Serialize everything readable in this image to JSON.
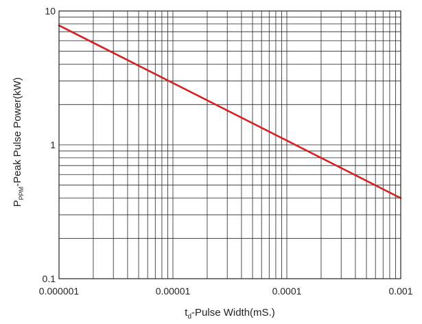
{
  "chart_data": {
    "type": "line",
    "xscale": "log",
    "yscale": "log",
    "xlim": [
      1e-06,
      0.001
    ],
    "ylim": [
      0.1,
      10
    ],
    "grid": true,
    "x_ticks": [
      {
        "value": 1e-06,
        "label": "0.000001"
      },
      {
        "value": 1e-05,
        "label": "0.00001"
      },
      {
        "value": 0.0001,
        "label": "0.0001"
      },
      {
        "value": 0.001,
        "label": "0.001"
      }
    ],
    "y_ticks": [
      {
        "value": 0.1,
        "label": "0.1"
      },
      {
        "value": 1,
        "label": "1"
      },
      {
        "value": 10,
        "label": "10"
      }
    ],
    "xlabel": {
      "main": "t",
      "sub": "d",
      "rest": "-Pulse Width(mS.)"
    },
    "ylabel": {
      "main": "P",
      "sub": "PPM",
      "rest": "-Peak Pulse Power(kW)"
    },
    "series": [
      {
        "color": "#d42020",
        "x": [
          1e-06,
          0.001
        ],
        "y": [
          7.8,
          0.4
        ]
      }
    ]
  }
}
